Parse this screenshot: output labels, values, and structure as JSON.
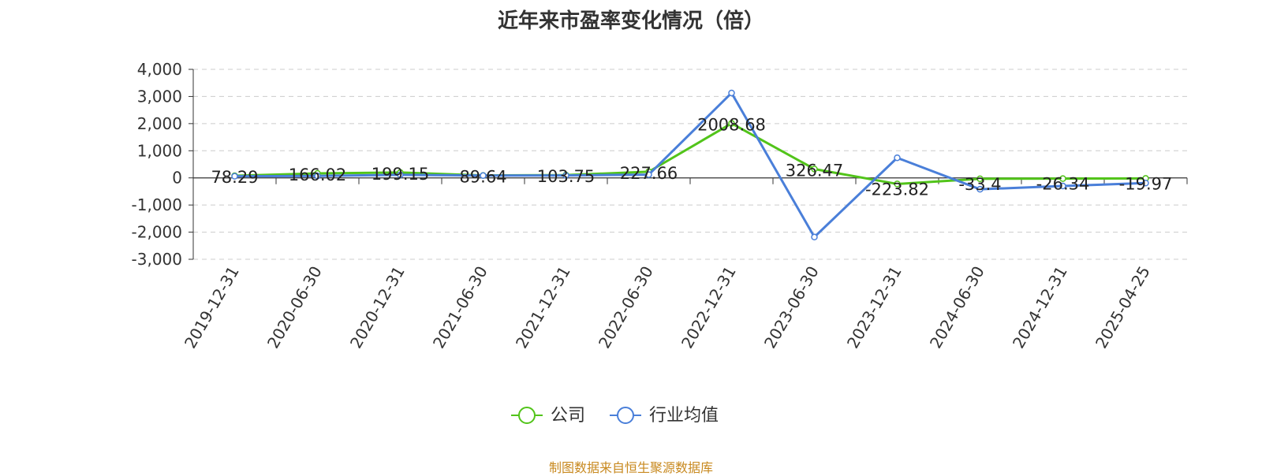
{
  "title": "近年来市盈率变化情况（倍）",
  "source_note": "制图数据来自恒生聚源数据库",
  "colors": {
    "company": "#52c41a",
    "industry": "#4a7fd9",
    "grid": "#cccccc",
    "axis": "#333333",
    "source": "#c8891f"
  },
  "chart_data": {
    "type": "line",
    "title": "近年来市盈率变化情况（倍）",
    "categories": [
      "2019-12-31",
      "2020-06-30",
      "2020-12-31",
      "2021-06-30",
      "2021-12-31",
      "2022-06-30",
      "2022-12-31",
      "2023-06-30",
      "2023-12-31",
      "2024-06-30",
      "2024-12-31",
      "2025-04-25"
    ],
    "y_ticks": [
      "4,000",
      "3,000",
      "2,000",
      "1,000",
      "0",
      "-1,000",
      "-2,000",
      "-3,000"
    ],
    "ylim": [
      -3000,
      4000
    ],
    "grid": true,
    "legend_position": "bottom",
    "series": [
      {
        "name": "公司",
        "color": "#52c41a",
        "values": [
          78.29,
          166.02,
          199.15,
          89.64,
          103.75,
          227.66,
          2008.68,
          326.47,
          -223.82,
          -33.4,
          -26.34,
          -19.97
        ],
        "labels": [
          "78.29",
          "166.02",
          "199.15",
          "89.64",
          "103.75",
          "227.66",
          "2008.68",
          "326.47",
          "-223.82",
          "-33.4",
          "-26.34",
          "-19.97"
        ]
      },
      {
        "name": "行业均值",
        "color": "#4a7fd9",
        "values": [
          60,
          70,
          110,
          85,
          90,
          120,
          3130,
          -2180,
          740,
          -420,
          -300,
          -190
        ]
      }
    ]
  }
}
